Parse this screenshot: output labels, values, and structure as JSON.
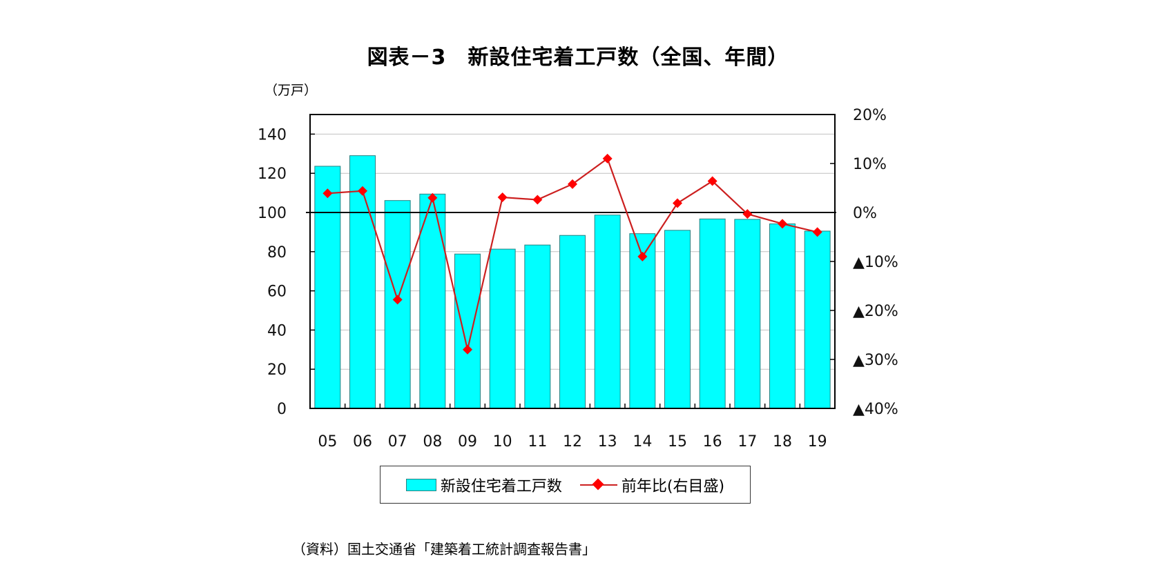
{
  "title": "図表－3　新設住宅着工戸数（全国、年間）",
  "left_axis_unit": "（万戸）",
  "source": "（資料）国土交通省「建築着工統計調査報告書」",
  "legend": {
    "bar_label": "新設住宅着工戸数",
    "line_label": "前年比(右目盛)"
  },
  "colors": {
    "bar_fill": "#00FFFF",
    "bar_stroke": "#2a8080",
    "line": "#cc1f1f",
    "marker": "#ff0000",
    "grid": "#c0c0c0"
  },
  "chart_data": {
    "type": "bar+line",
    "title": "図表－3　新設住宅着工戸数（全国、年間）",
    "xlabel": "",
    "categories": [
      "05",
      "06",
      "07",
      "08",
      "09",
      "10",
      "11",
      "12",
      "13",
      "14",
      "15",
      "16",
      "17",
      "18",
      "19"
    ],
    "series": [
      {
        "name": "新設住宅着工戸数",
        "type": "bar",
        "axis": "left",
        "unit": "万戸",
        "values": [
          123.6,
          129.0,
          106.1,
          109.4,
          78.8,
          81.3,
          83.4,
          88.3,
          98.7,
          89.2,
          90.9,
          96.7,
          96.5,
          94.2,
          90.5
        ]
      },
      {
        "name": "前年比(右目盛)",
        "type": "line",
        "axis": "right",
        "unit": "%",
        "values": [
          3.9,
          4.4,
          -17.8,
          3.0,
          -28.0,
          3.1,
          2.6,
          5.8,
          11.0,
          -9.0,
          1.9,
          6.4,
          -0.3,
          -2.3,
          -4.0
        ]
      }
    ],
    "left_axis": {
      "label": "（万戸）",
      "ylim": [
        0,
        150
      ],
      "ticks": [
        0,
        20,
        40,
        60,
        80,
        100,
        120,
        140
      ]
    },
    "right_axis": {
      "ylim": [
        -40,
        20
      ],
      "ticks": [
        20,
        10,
        0,
        -10,
        -20,
        -30,
        -40
      ],
      "tick_labels": [
        "20%",
        "10%",
        "0%",
        "▲10%",
        "▲20%",
        "▲30%",
        "▲40%"
      ]
    },
    "grid": true,
    "legend_position": "bottom"
  }
}
